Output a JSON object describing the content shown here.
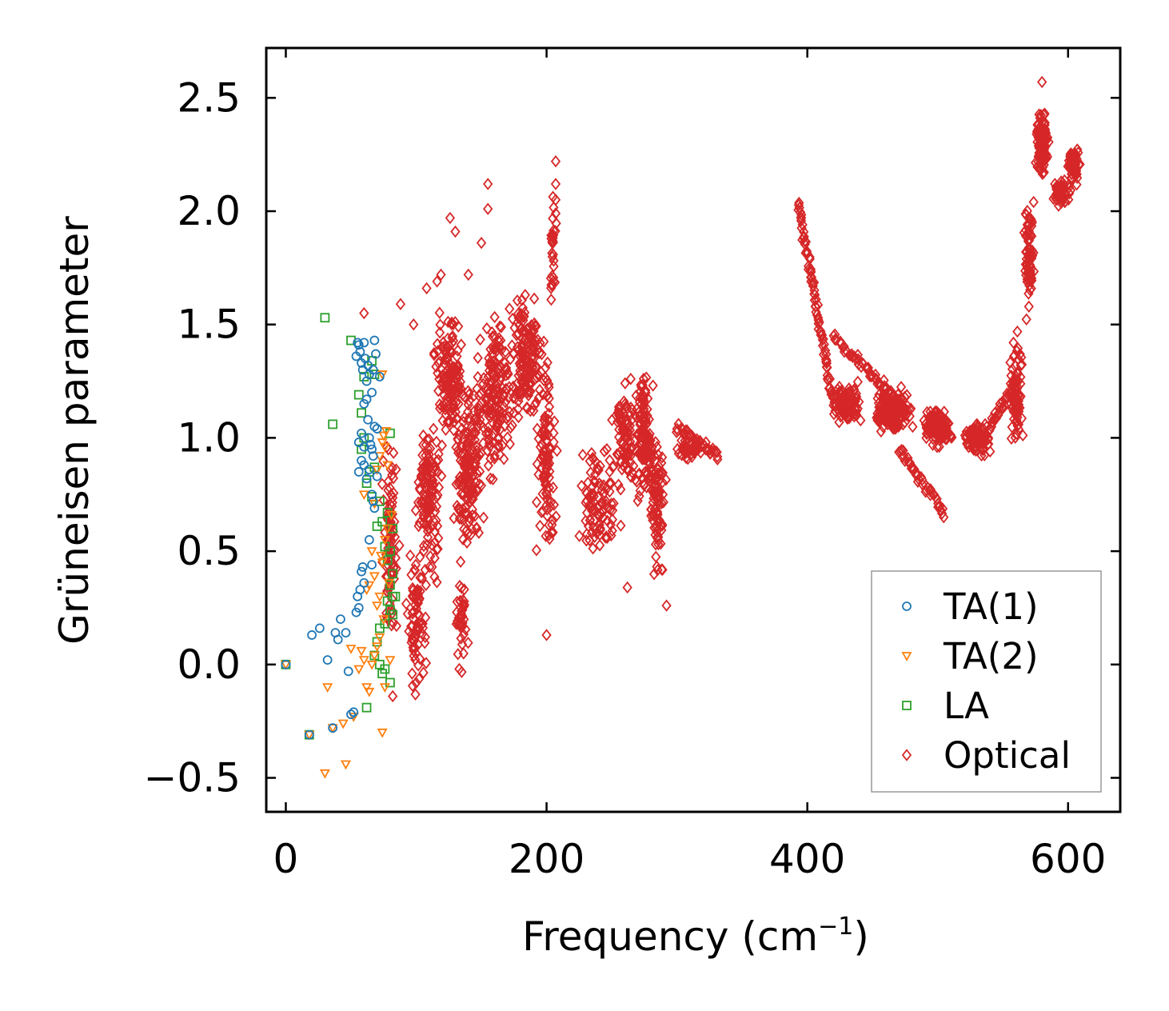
{
  "chart_data": {
    "type": "scatter",
    "title": "",
    "xlabel": "Frequency (cm",
    "xlabel_sup": "−1",
    "xlabel_close": ")",
    "ylabel": "Grüneisen parameter",
    "xlim": [
      -15,
      640
    ],
    "ylim": [
      -0.65,
      2.72
    ],
    "xticks": [
      0,
      200,
      400,
      600
    ],
    "xtick_labels": [
      "0",
      "200",
      "400",
      "600"
    ],
    "yticks": [
      -0.5,
      0.0,
      0.5,
      1.0,
      1.5,
      2.0,
      2.5
    ],
    "ytick_labels": [
      "−0.5",
      "0.0",
      "0.5",
      "1.0",
      "1.5",
      "2.0",
      "2.5"
    ],
    "legend_position": "lower-right",
    "series": [
      {
        "name": "TA(1)",
        "marker": "circle",
        "color": "#1f77b4",
        "points": [
          [
            0,
            0.0
          ],
          [
            18,
            -0.31
          ],
          [
            20,
            0.13
          ],
          [
            26,
            0.16
          ],
          [
            32,
            0.02
          ],
          [
            36,
            -0.28
          ],
          [
            38,
            0.14
          ],
          [
            40,
            0.11
          ],
          [
            42,
            0.2
          ],
          [
            46,
            0.14
          ],
          [
            48,
            -0.03
          ],
          [
            50,
            -0.22
          ],
          [
            52,
            -0.21
          ],
          [
            54,
            0.23
          ],
          [
            55,
            0.3
          ],
          [
            56,
            0.25
          ],
          [
            57,
            0.33
          ],
          [
            58,
            0.41
          ],
          [
            59,
            0.43
          ],
          [
            60,
            0.36
          ],
          [
            54,
            1.36
          ],
          [
            55,
            1.42
          ],
          [
            56,
            1.41
          ],
          [
            57,
            1.38
          ],
          [
            58,
            1.33
          ],
          [
            59,
            1.3
          ],
          [
            60,
            1.42
          ],
          [
            61,
            1.35
          ],
          [
            62,
            1.25
          ],
          [
            63,
            1.32
          ],
          [
            64,
            1.28
          ],
          [
            66,
            1.2
          ],
          [
            67,
            1.3
          ],
          [
            68,
            1.43
          ],
          [
            69,
            1.37
          ],
          [
            72,
            1.27
          ],
          [
            60,
            1.15
          ],
          [
            62,
            1.17
          ],
          [
            63,
            1.08
          ],
          [
            64,
            1.0
          ],
          [
            65,
            0.97
          ],
          [
            66,
            0.95
          ],
          [
            67,
            0.92
          ],
          [
            68,
            1.05
          ],
          [
            70,
            1.04
          ],
          [
            56,
            0.85
          ],
          [
            58,
            0.9
          ],
          [
            60,
            0.88
          ],
          [
            62,
            0.82
          ],
          [
            64,
            0.86
          ],
          [
            66,
            0.75
          ],
          [
            67,
            0.72
          ],
          [
            68,
            0.69
          ],
          [
            70,
            0.83
          ],
          [
            64,
            0.55
          ],
          [
            66,
            0.44
          ],
          [
            56,
            0.98
          ],
          [
            58,
            1.02
          ],
          [
            60,
            0.96
          ]
        ]
      },
      {
        "name": "TA(2)",
        "marker": "triangle-down",
        "color": "#ff7f0e",
        "points": [
          [
            0,
            0.0
          ],
          [
            18,
            -0.31
          ],
          [
            30,
            -0.48
          ],
          [
            32,
            -0.1
          ],
          [
            36,
            -0.28
          ],
          [
            44,
            -0.26
          ],
          [
            46,
            -0.44
          ],
          [
            50,
            0.07
          ],
          [
            52,
            -0.23
          ],
          [
            56,
            -0.02
          ],
          [
            58,
            0.06
          ],
          [
            60,
            0.02
          ],
          [
            62,
            -0.1
          ],
          [
            64,
            -0.12
          ],
          [
            66,
            0.0
          ],
          [
            68,
            0.04
          ],
          [
            70,
            0.08
          ],
          [
            72,
            0.12
          ],
          [
            74,
            -0.3
          ],
          [
            76,
            -0.1
          ],
          [
            62,
            0.33
          ],
          [
            64,
            0.35
          ],
          [
            66,
            0.5
          ],
          [
            68,
            0.39
          ],
          [
            70,
            0.26
          ],
          [
            72,
            0.3
          ],
          [
            74,
            0.45
          ],
          [
            76,
            0.55
          ],
          [
            78,
            0.6
          ],
          [
            70,
            0.86
          ],
          [
            72,
            0.92
          ],
          [
            74,
            0.98
          ],
          [
            75,
            1.01
          ],
          [
            76,
            0.96
          ],
          [
            77,
            1.03
          ],
          [
            78,
            0.88
          ],
          [
            74,
            1.28
          ],
          [
            73,
            0.48
          ],
          [
            75,
            0.2
          ],
          [
            80,
            0.02
          ],
          [
            81,
            0.66
          ],
          [
            79,
            0.36
          ],
          [
            68,
            0.71
          ],
          [
            60,
            0.75
          ]
        ]
      },
      {
        "name": "LA",
        "marker": "square",
        "color": "#2ca02c",
        "points": [
          [
            0,
            0.0
          ],
          [
            18,
            -0.31
          ],
          [
            30,
            1.53
          ],
          [
            36,
            1.06
          ],
          [
            50,
            1.43
          ],
          [
            56,
            1.19
          ],
          [
            58,
            1.11
          ],
          [
            60,
            1.27
          ],
          [
            58,
            0.95
          ],
          [
            60,
            1.0
          ],
          [
            62,
            0.8
          ],
          [
            64,
            0.85
          ],
          [
            66,
            0.74
          ],
          [
            68,
            0.87
          ],
          [
            70,
            0.61
          ],
          [
            72,
            0.72
          ],
          [
            74,
            0.63
          ],
          [
            76,
            0.52
          ],
          [
            78,
            0.46
          ],
          [
            80,
            0.5
          ],
          [
            82,
            0.4
          ],
          [
            82,
            0.3
          ],
          [
            80,
            0.35
          ],
          [
            78,
            0.28
          ],
          [
            80,
            0.24
          ],
          [
            82,
            0.22
          ],
          [
            84,
            0.3
          ],
          [
            76,
            0.18
          ],
          [
            72,
            0.16
          ],
          [
            70,
            0.1
          ],
          [
            68,
            0.04
          ],
          [
            72,
            0.0
          ],
          [
            74,
            -0.04
          ],
          [
            76,
            -0.02
          ],
          [
            80,
            -0.08
          ],
          [
            62,
            -0.19
          ],
          [
            80,
            1.02
          ],
          [
            78,
            0.67
          ],
          [
            82,
            0.6
          ],
          [
            66,
            1.34
          ],
          [
            68,
            1.28
          ]
        ]
      },
      {
        "name": "Optical",
        "marker": "diamond",
        "color": "#d62728",
        "clusters": [
          {
            "center": [
              80,
              0.55
            ],
            "spread": [
              8,
              0.55
            ],
            "n": 90
          },
          {
            "center": [
              100,
              0.2
            ],
            "spread": [
              10,
              0.35
            ],
            "n": 80
          },
          {
            "center": [
              110,
              0.75
            ],
            "spread": [
              12,
              0.45
            ],
            "n": 130
          },
          {
            "center": [
              125,
              1.25
            ],
            "spread": [
              14,
              0.35
            ],
            "n": 140
          },
          {
            "center": [
              140,
              0.85
            ],
            "spread": [
              14,
              0.5
            ],
            "n": 160
          },
          {
            "center": [
              135,
              0.2
            ],
            "spread": [
              6,
              0.3
            ],
            "n": 40
          },
          {
            "center": [
              160,
              1.2
            ],
            "spread": [
              18,
              0.45
            ],
            "n": 170
          },
          {
            "center": [
              185,
              1.35
            ],
            "spread": [
              16,
              0.35
            ],
            "n": 160
          },
          {
            "center": [
              200,
              0.9
            ],
            "spread": [
              10,
              0.55
            ],
            "n": 100
          },
          {
            "center": [
              205,
              1.85
            ],
            "spread": [
              3,
              0.3
            ],
            "n": 30
          },
          {
            "center": [
              240,
              0.75
            ],
            "spread": [
              20,
              0.35
            ],
            "n": 100
          },
          {
            "center": [
              260,
              1.0
            ],
            "spread": [
              12,
              0.3
            ],
            "n": 90
          },
          {
            "center": [
              275,
              1.0
            ],
            "spread": [
              8,
              0.35
            ],
            "n": 120
          },
          {
            "center": [
              285,
              0.7
            ],
            "spread": [
              8,
              0.4
            ],
            "n": 90
          },
          {
            "center": [
              310,
              0.95
            ],
            "spread": [
              12,
              0.06
            ],
            "n": 40
          },
          {
            "center": [
              430,
              1.15
            ],
            "spread": [
              14,
              0.12
            ],
            "n": 120
          },
          {
            "center": [
              465,
              1.12
            ],
            "spread": [
              18,
              0.12
            ],
            "n": 150
          },
          {
            "center": [
              500,
              1.05
            ],
            "spread": [
              15,
              0.12
            ],
            "n": 120
          },
          {
            "center": [
              530,
              1.0
            ],
            "spread": [
              14,
              0.1
            ],
            "n": 100
          },
          {
            "center": [
              560,
              1.2
            ],
            "spread": [
              6,
              0.3
            ],
            "n": 80
          },
          {
            "center": [
              570,
              1.8
            ],
            "spread": [
              5,
              0.3
            ],
            "n": 80
          },
          {
            "center": [
              580,
              2.3
            ],
            "spread": [
              6,
              0.2
            ],
            "n": 120
          },
          {
            "center": [
              595,
              2.08
            ],
            "spread": [
              8,
              0.08
            ],
            "n": 60
          },
          {
            "center": [
              605,
              2.2
            ],
            "spread": [
              6,
              0.1
            ],
            "n": 60
          }
        ],
        "paths": [
          {
            "from": [
              393,
              2.04
            ],
            "to": [
              420,
              1.15
            ],
            "n": 80
          },
          {
            "from": [
              420,
              1.45
            ],
            "to": [
              480,
              1.1
            ],
            "n": 60
          },
          {
            "from": [
              470,
              0.95
            ],
            "to": [
              505,
              0.67
            ],
            "n": 40
          },
          {
            "from": [
              300,
              1.05
            ],
            "to": [
              332,
              0.92
            ],
            "n": 40
          },
          {
            "from": [
              540,
              1.05
            ],
            "to": [
              560,
              1.25
            ],
            "n": 30
          }
        ],
        "points": [
          [
            155,
            2.12
          ],
          [
            155,
            2.01
          ],
          [
            126,
            1.97
          ],
          [
            130,
            1.91
          ],
          [
            150,
            1.86
          ],
          [
            88,
            1.59
          ],
          [
            60,
            1.55
          ],
          [
            98,
            1.5
          ],
          [
            207,
            2.22
          ],
          [
            207,
            2.12
          ],
          [
            207,
            2.05
          ],
          [
            207,
            1.99
          ],
          [
            262,
            0.34
          ],
          [
            292,
            0.26
          ],
          [
            200,
            0.13
          ],
          [
            133,
            -0.02
          ],
          [
            82,
            -0.14
          ],
          [
            140,
            1.72
          ],
          [
            116,
            1.69
          ],
          [
            108,
            1.66
          ],
          [
            119,
            1.72
          ],
          [
            580,
            2.57
          ]
        ]
      }
    ]
  }
}
